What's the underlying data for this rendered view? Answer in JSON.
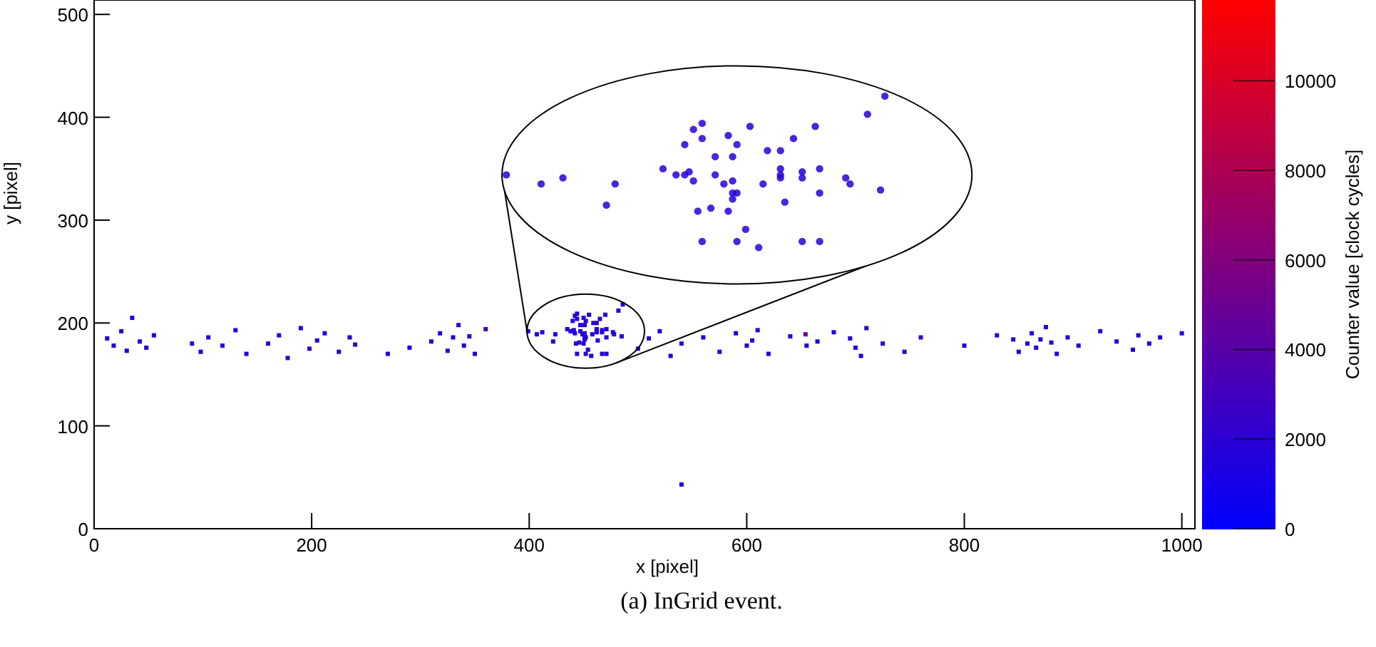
{
  "chart_data": {
    "type": "scatter",
    "xlabel": "x [pixel]",
    "ylabel": "y [pixel]",
    "clabel": "Counter value [clock cycles]",
    "annotations": [
      "(a) InGrid event."
    ],
    "xlim": [
      0,
      1012
    ],
    "ylim": [
      0,
      514
    ],
    "clim": [
      0,
      11800
    ],
    "xticks": [
      0,
      200,
      400,
      600,
      800,
      1000
    ],
    "yticks": [
      0,
      100,
      200,
      300,
      400,
      500
    ],
    "cticks": [
      0,
      2000,
      4000,
      6000,
      8000,
      10000
    ],
    "grid": false,
    "x": [
      12,
      18,
      25,
      30,
      35,
      42,
      48,
      55,
      90,
      98,
      105,
      118,
      130,
      140,
      160,
      170,
      178,
      190,
      198,
      205,
      212,
      225,
      235,
      240,
      270,
      290,
      310,
      318,
      325,
      330,
      335,
      340,
      345,
      350,
      360,
      399,
      407,
      412,
      424,
      422,
      435,
      438,
      440,
      441,
      442,
      447,
      447,
      451,
      449,
      451,
      451,
      452,
      451,
      446,
      443,
      450,
      454,
      444,
      452,
      457,
      467,
      471,
      463,
      458,
      462,
      462,
      462,
      467,
      467,
      471,
      477,
      478,
      471,
      485,
      440,
      452,
      459,
      462,
      465,
      444,
      442,
      444,
      450,
      455,
      470,
      482,
      486,
      500,
      510,
      520,
      530,
      540,
      654,
      560,
      575,
      590,
      600,
      605,
      610,
      620,
      640,
      655,
      665,
      680,
      695,
      700,
      705,
      710,
      725,
      745,
      760,
      800,
      830,
      845,
      850,
      858,
      862,
      866,
      870,
      875,
      880,
      885,
      895,
      905,
      925,
      940,
      955,
      960,
      970,
      980,
      1000,
      540
    ],
    "values": [
      185,
      178,
      192,
      173,
      205,
      182,
      176,
      188,
      180,
      172,
      186,
      178,
      193,
      170,
      180,
      188,
      166,
      195,
      175,
      183,
      190,
      172,
      186,
      179,
      170,
      176,
      182,
      190,
      173,
      186,
      198,
      178,
      187,
      170,
      194,
      192,
      189,
      191,
      189,
      182,
      194,
      192,
      192,
      193,
      190,
      198,
      192,
      198,
      189,
      190,
      186,
      186,
      184,
      181,
      180,
      180,
      174,
      170,
      170,
      168,
      170,
      170,
      183,
      189,
      191,
      192,
      194,
      193,
      191,
      194,
      191,
      189,
      186,
      187,
      202,
      202,
      200,
      200,
      204,
      204,
      207,
      209,
      205,
      208,
      208,
      212,
      218,
      175,
      185,
      192,
      168,
      180,
      189,
      186,
      172,
      190,
      178,
      183,
      193,
      170,
      187,
      178,
      182,
      191,
      185,
      176,
      168,
      195,
      180,
      172,
      186,
      178,
      188,
      184,
      172,
      180,
      190,
      176,
      184,
      196,
      181,
      170,
      186,
      178,
      192,
      182,
      174,
      188,
      180,
      186,
      190,
      43
    ],
    "cvalues": [
      1500,
      1500,
      1800,
      1200,
      1500,
      2000,
      1500,
      1300,
      1500,
      1200,
      1800,
      1500,
      1300,
      1500,
      2000,
      1500,
      1800,
      1200,
      2500,
      1500,
      1800,
      1300,
      1500,
      2000,
      1500,
      1200,
      1800,
      1500,
      2200,
      1500,
      2500,
      1800,
      1500,
      1300,
      3000,
      1800,
      1800,
      1800,
      1800,
      1800,
      1800,
      1800,
      1800,
      1800,
      1800,
      1800,
      1800,
      1800,
      1800,
      1800,
      1800,
      1800,
      1800,
      1800,
      1800,
      1800,
      1800,
      1800,
      1800,
      1800,
      1800,
      1800,
      1800,
      1800,
      1800,
      1800,
      1800,
      1800,
      1800,
      1800,
      1800,
      1800,
      1800,
      1800,
      1800,
      1800,
      1800,
      1800,
      1800,
      1800,
      1800,
      1800,
      1800,
      1800,
      1800,
      1800,
      1800,
      1500,
      1800,
      1300,
      1500,
      2000,
      5000,
      1500,
      1800,
      1200,
      1500,
      2000,
      1500,
      1300,
      1800,
      1500,
      1200,
      1500,
      1800,
      1300,
      1500,
      2500,
      2000,
      1800,
      2200,
      1500,
      2500,
      1800,
      1500,
      1300,
      1800,
      1500,
      1200,
      1500,
      1800,
      1300,
      2000,
      1500,
      1800,
      1500,
      1200,
      1800,
      1500,
      1500,
      1500,
      1500
    ]
  }
}
